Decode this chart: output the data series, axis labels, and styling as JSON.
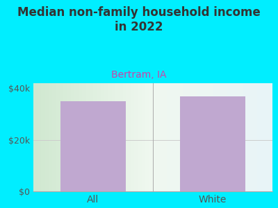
{
  "title": "Median non-family household income\nin 2022",
  "subtitle": "Bertram, IA",
  "categories": [
    "All",
    "White"
  ],
  "values": [
    35000,
    37000
  ],
  "bar_color": "#c0a8d0",
  "background_color": "#00eeff",
  "title_fontsize": 12,
  "subtitle_fontsize": 10,
  "subtitle_color": "#cc44aa",
  "tick_color": "#555555",
  "ylim": [
    0,
    42000
  ],
  "yticks": [
    0,
    20000,
    40000
  ],
  "ytick_labels": [
    "$0",
    "$20k",
    "$40k"
  ],
  "gradient_left": "#d0e8d0",
  "gradient_mid": "#f0f8f0",
  "gradient_right": "#e8f4f8"
}
